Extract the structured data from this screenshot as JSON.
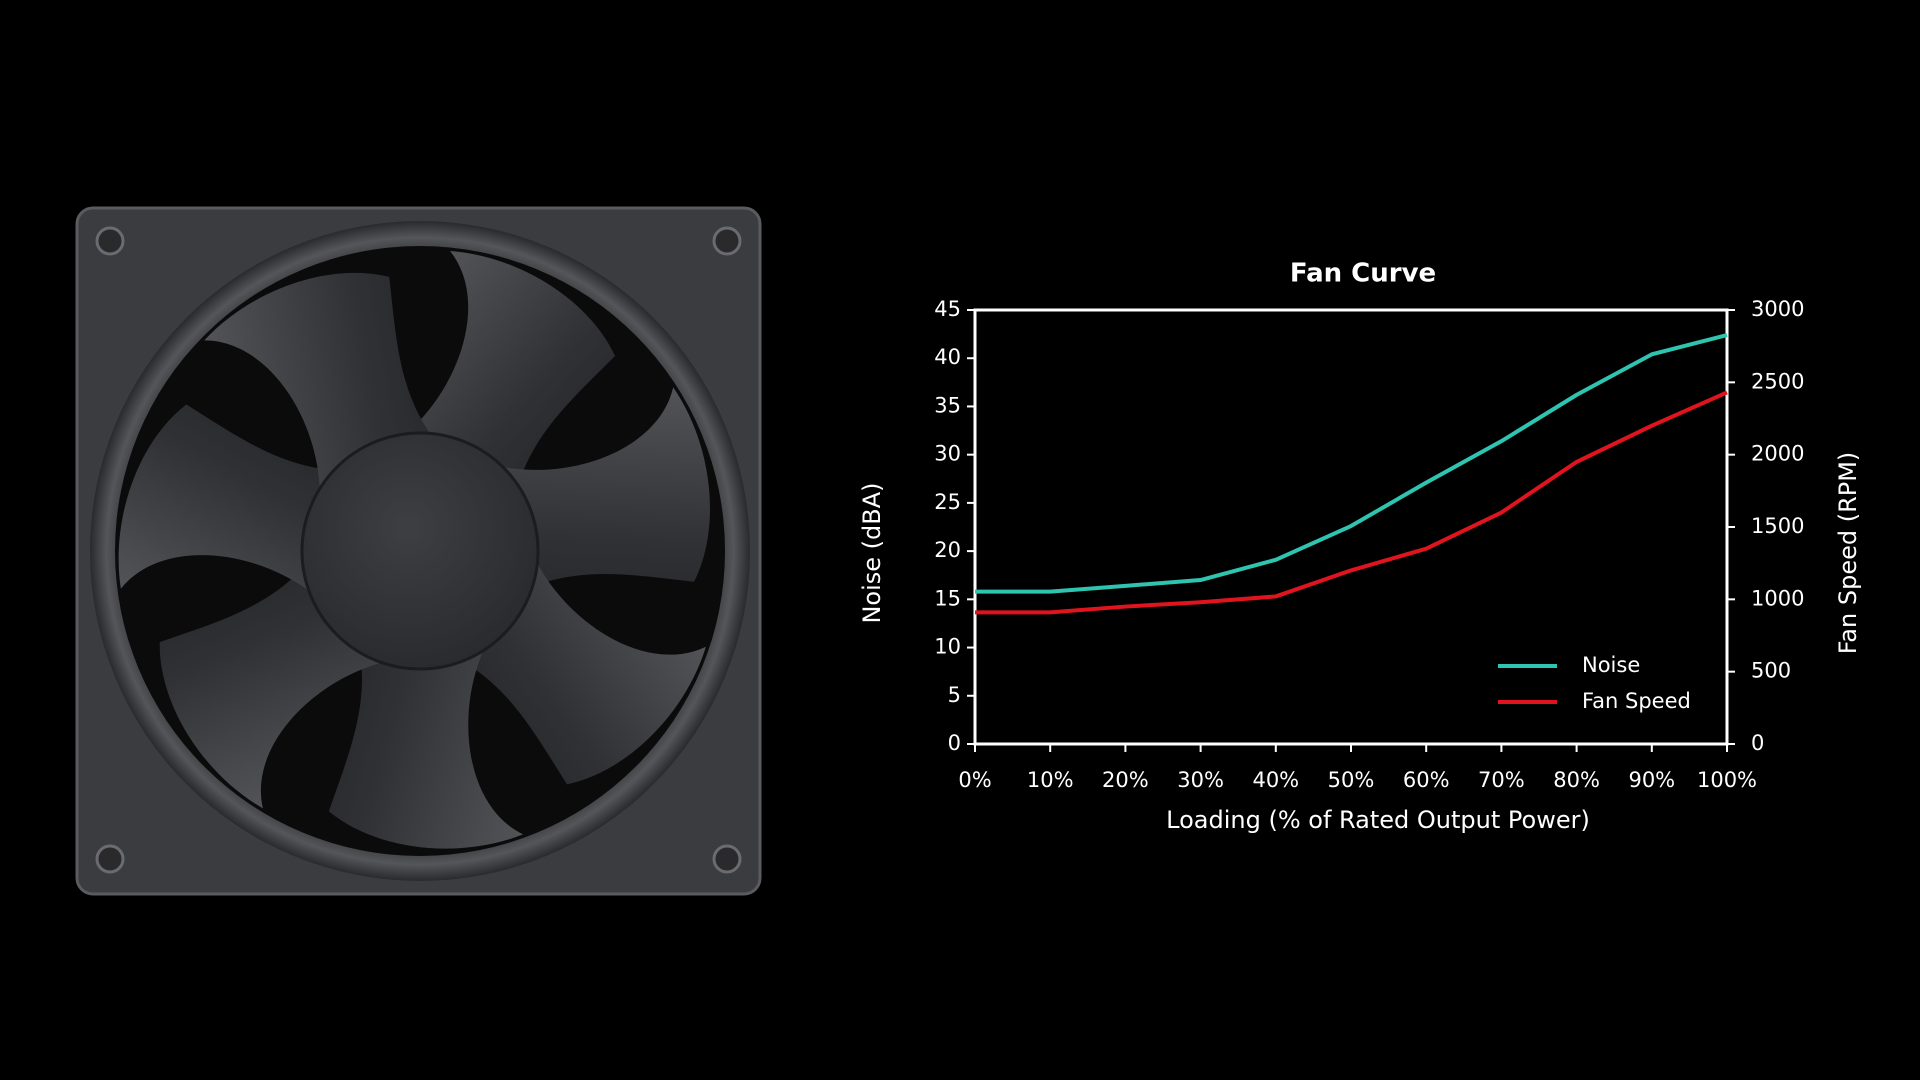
{
  "chart_data": {
    "type": "line",
    "title": "Fan Curve",
    "x_label": "Loading (% of Rated Output Power)",
    "y_label": "Noise (dBA)",
    "y2_label": "Fan Speed (RPM)",
    "categories": [
      "0%",
      "10%",
      "20%",
      "30%",
      "40%",
      "50%",
      "60%",
      "70%",
      "80%",
      "90%",
      "100%"
    ],
    "series": [
      {
        "name": "Noise",
        "color": "#2ec4b0",
        "values": [
          15.8,
          15.8,
          16.4,
          17,
          19.1,
          22.6,
          27.1,
          31.4,
          36.2,
          40.4,
          42.4
        ]
      },
      {
        "name": "Fan Speed",
        "color": "#e0141e",
        "axis": "y2",
        "values": [
          910,
          910,
          950,
          980,
          1020,
          1200,
          1350,
          1600,
          1950,
          2200,
          2430
        ]
      }
    ],
    "ylim": [
      0,
      45
    ],
    "yticks": [
      0,
      5,
      10,
      15,
      20,
      25,
      30,
      35,
      40,
      45
    ],
    "y2lim": [
      0,
      3000
    ],
    "y2ticks": [
      0,
      500,
      1000,
      1500,
      2000,
      2500,
      3000
    ],
    "grid": false,
    "legend": "lower right"
  }
}
